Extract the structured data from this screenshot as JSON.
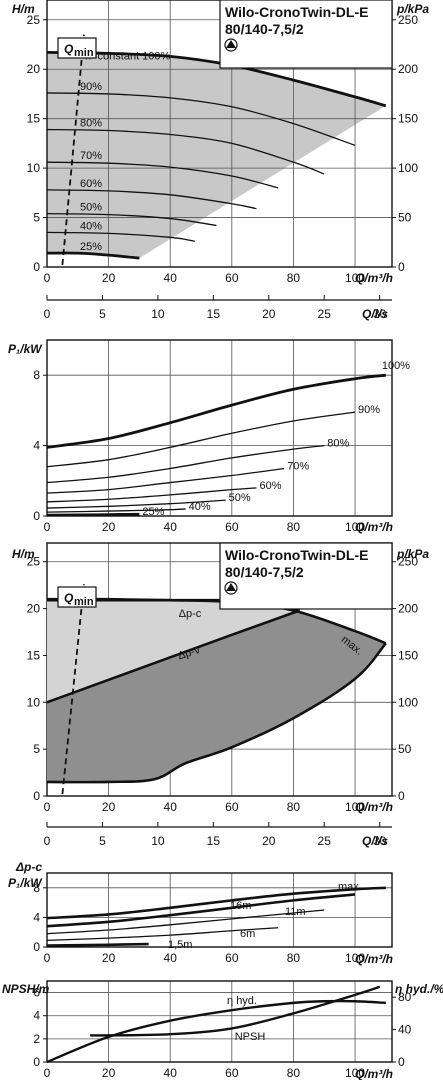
{
  "chart_data": [
    {
      "type": "line",
      "title": "Wilo-CronoTwin-DL-E",
      "subtitle": "80/140-7,5/2",
      "ylabel": "H/m",
      "ylabel_right": "p/kPa",
      "xlabel": "Q/m³/h",
      "xlabel_secondary": "Q/l/s",
      "xlim": [
        0,
        112
      ],
      "ylim": [
        0,
        27
      ],
      "xticks": [
        0,
        20,
        40,
        60,
        80,
        100
      ],
      "yticks": [
        0,
        5,
        10,
        15,
        20,
        25
      ],
      "yticks_right": [
        0,
        50,
        100,
        150,
        200,
        250
      ],
      "xticks_secondary": [
        0,
        5,
        10,
        15,
        20,
        25,
        30
      ],
      "qmin_label": "min",
      "qmin_prefix": "Q",
      "series": [
        {
          "name": "n=constant 100%",
          "x": [
            0,
            20,
            40,
            60,
            80,
            100,
            110
          ],
          "y": [
            21.7,
            21.6,
            21.3,
            20.4,
            18.9,
            17.2,
            16.3
          ]
        },
        {
          "name": "90%",
          "x": [
            0,
            20,
            40,
            60,
            80,
            100
          ],
          "y": [
            17.6,
            17.5,
            17.1,
            16.2,
            14.5,
            12.3
          ]
        },
        {
          "name": "80%",
          "x": [
            0,
            20,
            40,
            60,
            80,
            90
          ],
          "y": [
            13.9,
            13.8,
            13.4,
            12.5,
            10.6,
            9.4
          ]
        },
        {
          "name": "70%",
          "x": [
            0,
            20,
            40,
            60,
            75
          ],
          "y": [
            10.6,
            10.5,
            10.1,
            9.2,
            8.0
          ]
        },
        {
          "name": "60%",
          "x": [
            0,
            20,
            40,
            60,
            68
          ],
          "y": [
            7.8,
            7.7,
            7.3,
            6.4,
            5.9
          ]
        },
        {
          "name": "50%",
          "x": [
            0,
            20,
            40,
            55
          ],
          "y": [
            5.4,
            5.3,
            4.9,
            4.2
          ]
        },
        {
          "name": "40%",
          "x": [
            0,
            20,
            40,
            48
          ],
          "y": [
            3.5,
            3.4,
            3.0,
            2.6
          ]
        },
        {
          "name": "25%",
          "x": [
            0,
            10,
            20,
            30
          ],
          "y": [
            1.4,
            1.4,
            1.2,
            0.9
          ]
        }
      ]
    },
    {
      "type": "line",
      "ylabel": "P₁/kW",
      "xlabel": "Q/m³/h",
      "xlim": [
        0,
        112
      ],
      "ylim": [
        0,
        10
      ],
      "xticks": [
        0,
        20,
        40,
        60,
        80,
        100
      ],
      "yticks": [
        0,
        4,
        8
      ],
      "series": [
        {
          "name": "100%",
          "x": [
            0,
            20,
            40,
            60,
            80,
            100,
            110
          ],
          "y": [
            3.9,
            4.4,
            5.3,
            6.3,
            7.2,
            7.8,
            8.0
          ]
        },
        {
          "name": "90%",
          "x": [
            0,
            20,
            40,
            60,
            80,
            100
          ],
          "y": [
            2.8,
            3.2,
            3.9,
            4.7,
            5.4,
            5.9
          ]
        },
        {
          "name": "80%",
          "x": [
            0,
            20,
            40,
            60,
            80,
            90
          ],
          "y": [
            1.9,
            2.2,
            2.7,
            3.3,
            3.8,
            4.0
          ]
        },
        {
          "name": "70%",
          "x": [
            0,
            20,
            40,
            60,
            77
          ],
          "y": [
            1.3,
            1.5,
            1.9,
            2.3,
            2.7
          ]
        },
        {
          "name": "60%",
          "x": [
            0,
            20,
            40,
            60,
            68
          ],
          "y": [
            0.8,
            0.95,
            1.2,
            1.5,
            1.6
          ]
        },
        {
          "name": "50%",
          "x": [
            0,
            20,
            40,
            58
          ],
          "y": [
            0.45,
            0.55,
            0.7,
            0.9
          ]
        },
        {
          "name": "40%",
          "x": [
            0,
            20,
            40,
            45
          ],
          "y": [
            0.22,
            0.28,
            0.36,
            0.4
          ]
        },
        {
          "name": "25%",
          "x": [
            0,
            10,
            20,
            30
          ],
          "y": [
            0.05,
            0.06,
            0.08,
            0.1
          ]
        }
      ]
    },
    {
      "type": "area",
      "title": "Wilo-CronoTwin-DL-E",
      "subtitle": "80/140-7,5/2",
      "ylabel": "H/m",
      "ylabel_right": "p/kPa",
      "xlabel": "Q/m³/h",
      "xlabel_secondary": "Q/l/s",
      "xlim": [
        0,
        112
      ],
      "ylim": [
        0,
        27
      ],
      "xticks": [
        0,
        20,
        40,
        60,
        80,
        100
      ],
      "yticks": [
        0,
        5,
        10,
        15,
        20,
        25
      ],
      "yticks_right": [
        0,
        50,
        100,
        150,
        200,
        250
      ],
      "xticks_secondary": [
        0,
        5,
        10,
        15,
        20,
        25,
        30
      ],
      "qmin_label": "min",
      "qmin_prefix": "Q",
      "series": [
        {
          "name": "Δp-c",
          "x": [
            0,
            20,
            40,
            60,
            70,
            82
          ],
          "y": [
            20.9,
            20.9,
            20.9,
            20.9,
            20.9,
            19.8
          ]
        },
        {
          "name": "Δp-v",
          "x": [
            0,
            20,
            40,
            60,
            82
          ],
          "y": [
            10.0,
            12.4,
            14.8,
            17.2,
            19.8
          ]
        },
        {
          "name": "max.",
          "x": [
            0,
            20,
            40,
            60,
            80,
            100,
            110
          ],
          "y": [
            21.0,
            21.0,
            20.9,
            20.7,
            19.8,
            17.6,
            16.3
          ]
        },
        {
          "name": "min",
          "x": [
            0,
            20,
            35,
            45,
            60,
            80,
            100,
            110
          ],
          "y": [
            1.5,
            1.5,
            1.8,
            3.5,
            5.2,
            8.3,
            12.5,
            16.3
          ]
        }
      ]
    },
    {
      "type": "line",
      "ylabel_top": "Δp-c",
      "ylabel": "P₁/kW",
      "xlabel": "Q/m³/h",
      "xlim": [
        0,
        112
      ],
      "ylim": [
        0,
        10
      ],
      "xticks": [
        0,
        20,
        40,
        60,
        80,
        100
      ],
      "yticks": [
        0,
        4,
        8
      ],
      "series": [
        {
          "name": "max.",
          "x": [
            0,
            20,
            40,
            60,
            80,
            100,
            110
          ],
          "y": [
            3.9,
            4.4,
            5.3,
            6.3,
            7.2,
            7.8,
            8.0
          ]
        },
        {
          "name": "16m",
          "x": [
            0,
            20,
            40,
            60,
            80,
            100
          ],
          "y": [
            2.8,
            3.4,
            4.3,
            5.3,
            6.3,
            7.1
          ]
        },
        {
          "name": "11m",
          "x": [
            0,
            20,
            40,
            60,
            80,
            90
          ],
          "y": [
            1.8,
            2.3,
            3.0,
            3.8,
            4.6,
            5.0
          ]
        },
        {
          "name": "6m",
          "x": [
            0,
            20,
            40,
            60,
            75
          ],
          "y": [
            0.9,
            1.2,
            1.6,
            2.2,
            2.6
          ]
        },
        {
          "name": "1,5m",
          "x": [
            0,
            10,
            20,
            33
          ],
          "y": [
            0.2,
            0.25,
            0.3,
            0.4
          ]
        }
      ]
    },
    {
      "type": "line",
      "ylabel": "NPSH/m",
      "ylabel_right": "η hyd./%",
      "xlabel": "Q/m³/h",
      "xlim": [
        0,
        112
      ],
      "ylim": [
        0,
        7
      ],
      "ylim_right": [
        0,
        100
      ],
      "xticks": [
        0,
        20,
        40,
        60,
        80,
        100
      ],
      "yticks": [
        0,
        2,
        4,
        6
      ],
      "yticks_right": [
        0,
        40,
        80
      ],
      "series": [
        {
          "name": "η hyd.",
          "axis": "right",
          "x": [
            0,
            20,
            40,
            60,
            80,
            90,
            100,
            110
          ],
          "y": [
            0,
            31,
            51,
            64,
            73,
            75,
            75,
            73
          ]
        },
        {
          "name": "NPSH",
          "axis": "left",
          "x": [
            14,
            20,
            40,
            60,
            80,
            100,
            108
          ],
          "y": [
            2.3,
            2.3,
            2.4,
            2.9,
            4.2,
            5.8,
            6.5
          ]
        }
      ]
    }
  ]
}
